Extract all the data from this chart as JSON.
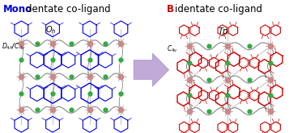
{
  "title_left_blue": "Mono",
  "title_left_black": "dentate co-ligand",
  "title_right_red": "B",
  "title_right_black": "identate co-ligand",
  "label_left_top": "$O_h$",
  "label_left_bot": "$D_{4h}$/$C_{4v}$",
  "label_right_top": "$Tp$",
  "label_right_bot": "$C_{4v}$",
  "arrow_color": "#c0aad8",
  "bg_left": "#f5f5ff",
  "bg_right": "#fff5f5",
  "figsize": [
    3.78,
    1.65
  ],
  "dpi": 100,
  "node_color_left": "#0000dd",
  "node_color_right": "#cc0000",
  "metal_color_left": "#cc8888",
  "metal_color_right": "#cc8888",
  "green_color": "#33aa44",
  "chain_color": "#777777",
  "title_fontsize": 8.5
}
